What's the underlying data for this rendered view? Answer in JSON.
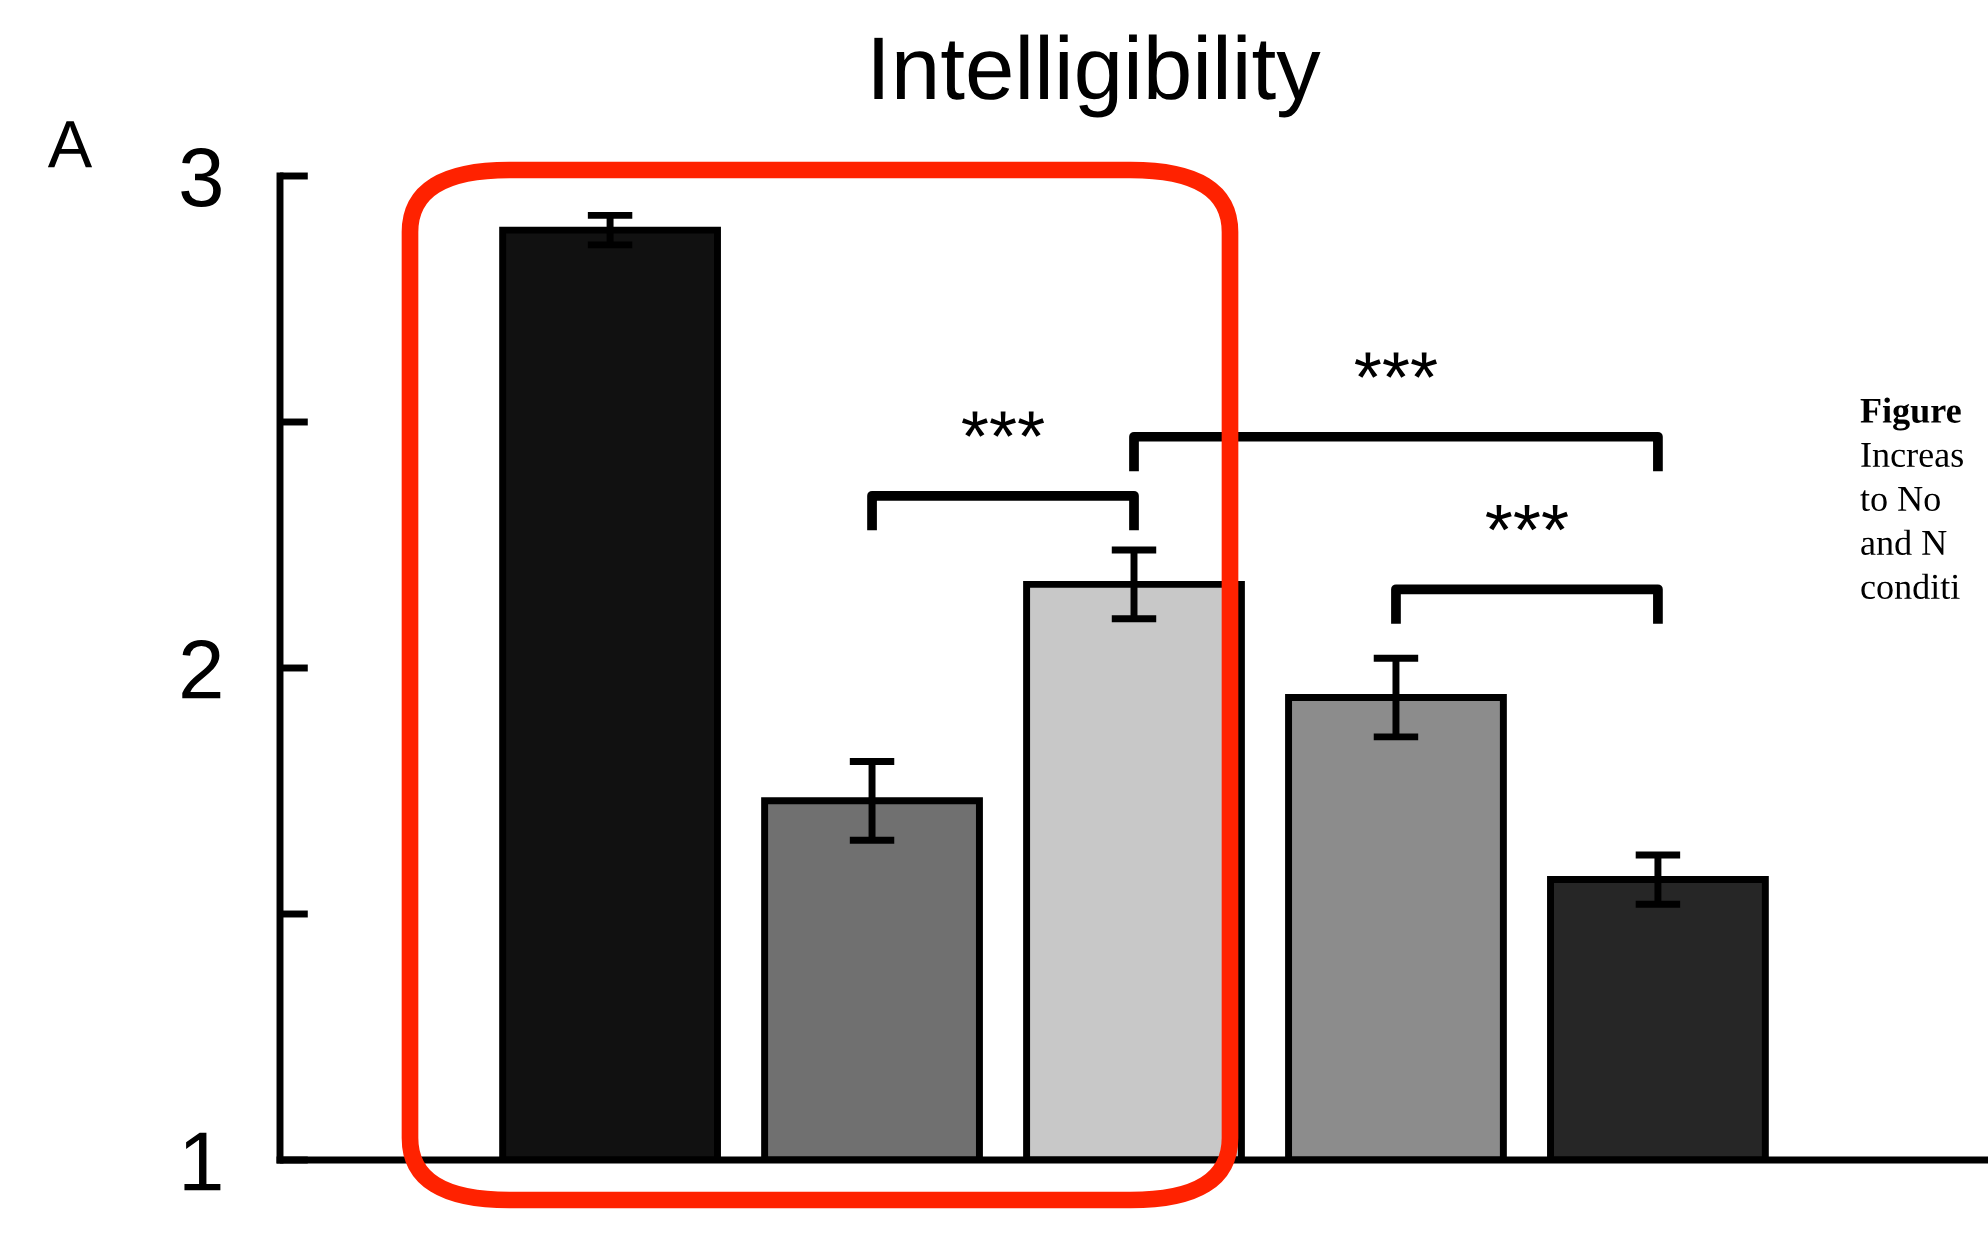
{
  "chart_data": {
    "type": "bar",
    "title": "Intelligibility",
    "categories": [
      null,
      null,
      null,
      null,
      null
    ],
    "values": [
      2.89,
      1.73,
      2.17,
      1.94,
      1.57
    ],
    "errors": [
      0.03,
      0.08,
      0.07,
      0.08,
      0.05
    ],
    "colors": [
      "#111111",
      "#707070",
      "#c8c8c8",
      "#8c8c8c",
      "#262626"
    ],
    "ylim": [
      1,
      3
    ],
    "yticks": [
      1,
      {
        "value": 1.5,
        "label": null
      },
      2,
      {
        "value": 2.5,
        "label": null
      },
      3
    ],
    "annotations": [
      "A",
      "***",
      "***",
      "***",
      "Figure",
      "Increas",
      "to No",
      "and N",
      "conditi"
    ],
    "grid": false,
    "legend": false
  }
}
